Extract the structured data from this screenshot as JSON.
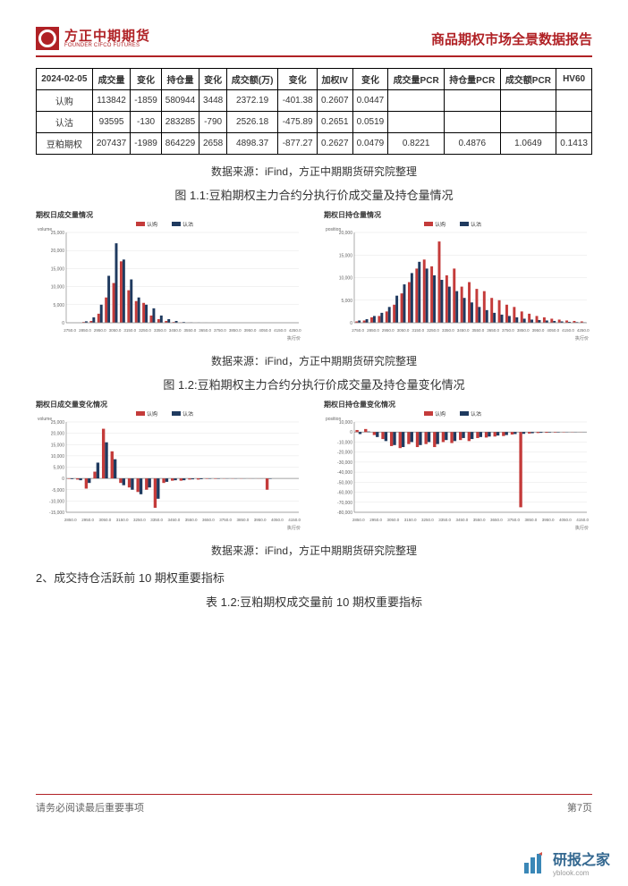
{
  "header": {
    "logo_cn": "方正中期期货",
    "logo_en": "FOUNDER CIFCO FUTURES",
    "title": "商品期权市场全景数据报告"
  },
  "table": {
    "headers": [
      "2024-02-05",
      "成交量",
      "变化",
      "持仓量",
      "变化",
      "成交额(万)",
      "变化",
      "加权IV",
      "变化",
      "成交量PCR",
      "持仓量PCR",
      "成交额PCR",
      "HV60"
    ],
    "rows": [
      [
        "认购",
        "113842",
        "-1859",
        "580944",
        "3448",
        "2372.19",
        "-401.38",
        "0.2607",
        "0.0447",
        "",
        "",
        "",
        ""
      ],
      [
        "认沽",
        "93595",
        "-130",
        "283285",
        "-790",
        "2526.18",
        "-475.89",
        "0.2651",
        "0.0519",
        "",
        "",
        "",
        ""
      ],
      [
        "豆粕期权",
        "207437",
        "-1989",
        "864229",
        "2658",
        "4898.37",
        "-877.27",
        "0.2627",
        "0.0479",
        "0.8221",
        "0.4876",
        "1.0649",
        "0.1413"
      ]
    ]
  },
  "sources": {
    "s1": "数据来源：iFind，方正中期期货研究院整理",
    "s2": "数据来源：iFind，方正中期期货研究院整理",
    "s3": "数据来源：iFind，方正中期期货研究院整理"
  },
  "figs": {
    "f11": "图 1.1:豆粕期权主力合约分执行价成交量及持仓量情况",
    "f12": "图 1.2:豆粕期权主力合约分执行价成交量及持仓量变化情况"
  },
  "chart_titles": {
    "c1": "期权日成交量情况",
    "c2": "期权日持仓量情况",
    "c3": "期权日成交量变化情况",
    "c4": "期权日持仓量变化情况"
  },
  "legend": {
    "l1": "认购",
    "l2": "认沽"
  },
  "axis_labels": {
    "y1": "volume",
    "y2": "position",
    "x": "执行价"
  },
  "colors": {
    "red": "#c43b3a",
    "navy": "#1f3a5f",
    "grid": "#e5e5e5",
    "axis": "#888888",
    "brand": "#b02125",
    "wm": "#3a87b7"
  },
  "charts": {
    "c1": {
      "type": "grouped-bar",
      "ylim": [
        0,
        25000
      ],
      "yticks": [
        0,
        5000,
        10000,
        15000,
        20000,
        25000
      ],
      "xticks": [
        "2750.0",
        "2800.0",
        "2850.0",
        "2900.0",
        "2950.0",
        "3000.0",
        "3050.0",
        "3100.0",
        "3150.0",
        "3200.0",
        "3250.0",
        "3300.0",
        "3350.0",
        "3400.0",
        "3450.0",
        "3500.0",
        "3550.0",
        "3600.0",
        "3650.0",
        "3700.0",
        "3750.0",
        "3800.0",
        "3850.0",
        "3900.0",
        "3950.0",
        "4000.0",
        "4050.0",
        "4100.0",
        "4150.0",
        "4200.0",
        "4250.0"
      ],
      "series1": [
        0,
        0,
        200,
        500,
        2500,
        7000,
        11000,
        17000,
        9000,
        6000,
        5500,
        2000,
        1000,
        500,
        200,
        100,
        50,
        20,
        10,
        0,
        0,
        0,
        0,
        0,
        0,
        0,
        0,
        0,
        0,
        0,
        0
      ],
      "series2": [
        0,
        0,
        400,
        1500,
        5000,
        13000,
        22000,
        17500,
        12000,
        7000,
        5000,
        4000,
        2000,
        1000,
        500,
        200,
        100,
        50,
        20,
        10,
        0,
        0,
        0,
        0,
        0,
        0,
        0,
        0,
        0,
        0,
        0
      ]
    },
    "c2": {
      "type": "grouped-bar",
      "ylim": [
        0,
        20000
      ],
      "yticks": [
        0,
        5000,
        10000,
        15000,
        20000
      ],
      "xticks": [
        "2750.0",
        "2800.0",
        "2850.0",
        "2900.0",
        "2950.0",
        "3000.0",
        "3050.0",
        "3100.0",
        "3150.0",
        "3200.0",
        "3250.0",
        "3300.0",
        "3350.0",
        "3400.0",
        "3450.0",
        "3500.0",
        "3550.0",
        "3600.0",
        "3650.0",
        "3700.0",
        "3750.0",
        "3800.0",
        "3850.0",
        "3900.0",
        "3950.0",
        "4000.0",
        "4050.0",
        "4100.0",
        "4150.0",
        "4200.0",
        "4250.0"
      ],
      "series1": [
        300,
        500,
        1200,
        1500,
        2500,
        4000,
        6500,
        9000,
        12000,
        14000,
        12500,
        18000,
        10500,
        12000,
        8000,
        9000,
        7500,
        7000,
        5500,
        5000,
        4000,
        3500,
        2500,
        2000,
        1500,
        1200,
        900,
        700,
        500,
        400,
        300
      ],
      "series2": [
        500,
        800,
        1500,
        2200,
        3500,
        6000,
        8500,
        11000,
        13500,
        12000,
        10500,
        9500,
        8000,
        7000,
        5500,
        4500,
        3500,
        2800,
        2200,
        1800,
        1500,
        1200,
        900,
        700,
        600,
        500,
        400,
        300,
        200,
        150,
        100
      ]
    },
    "c3": {
      "type": "grouped-bar",
      "ylim": [
        -15000,
        25000
      ],
      "yticks": [
        -15000,
        -10000,
        -5000,
        0,
        5000,
        10000,
        15000,
        20000,
        25000
      ],
      "xticks": [
        "2850.0",
        "2900.0",
        "2950.0",
        "3000.0",
        "3050.0",
        "3100.0",
        "3150.0",
        "3200.0",
        "3250.0",
        "3300.0",
        "3350.0",
        "3400.0",
        "3450.0",
        "3500.0",
        "3550.0",
        "3600.0",
        "3650.0",
        "3700.0",
        "3750.0",
        "3800.0",
        "3850.0",
        "3900.0",
        "3950.0",
        "4000.0",
        "4050.0",
        "4100.0",
        "4150.0"
      ],
      "series1": [
        -200,
        -500,
        -4500,
        3000,
        22000,
        12000,
        -2000,
        -4000,
        -6000,
        -5000,
        -13000,
        -2000,
        -1000,
        -1000,
        -500,
        -500,
        -200,
        -200,
        -100,
        -100,
        -100,
        -50,
        -50,
        -5000,
        0,
        0,
        0
      ],
      "series2": [
        -300,
        -800,
        -2000,
        7000,
        16000,
        8500,
        -3000,
        -5000,
        -7000,
        -4000,
        -9000,
        -1500,
        -800,
        -800,
        -400,
        -350,
        -180,
        -180,
        -80,
        -80,
        -50,
        -30,
        -30,
        -200,
        0,
        0,
        0
      ]
    },
    "c4": {
      "type": "grouped-bar",
      "ylim": [
        -80000,
        10000
      ],
      "yticks": [
        -80000,
        -70000,
        -60000,
        -50000,
        -40000,
        -30000,
        -20000,
        -10000,
        0,
        10000
      ],
      "xticks": [
        "2850.0",
        "2900.0",
        "2950.0",
        "3000.0",
        "3050.0",
        "3100.0",
        "3150.0",
        "3200.0",
        "3250.0",
        "3300.0",
        "3350.0",
        "3400.0",
        "3450.0",
        "3500.0",
        "3550.0",
        "3600.0",
        "3650.0",
        "3700.0",
        "3750.0",
        "3800.0",
        "3850.0",
        "3900.0",
        "3950.0",
        "4000.0",
        "4050.0",
        "4100.0",
        "4150.0"
      ],
      "series1": [
        2000,
        3000,
        -3000,
        -7000,
        -14000,
        -16000,
        -12000,
        -15000,
        -12000,
        -15000,
        -10000,
        -11000,
        -8000,
        -9000,
        -6000,
        -5500,
        -4500,
        -4000,
        -2500,
        -75000,
        -1500,
        -1000,
        -800,
        -500,
        -300,
        -200,
        -100
      ],
      "series2": [
        -2000,
        500,
        -5000,
        -9000,
        -13000,
        -15000,
        -10000,
        -13000,
        -10000,
        -12000,
        -8000,
        -9000,
        -6000,
        -7000,
        -5000,
        -4500,
        -3500,
        -3000,
        -2000,
        -1800,
        -1200,
        -800,
        -500,
        -400,
        -200,
        -150,
        -80
      ]
    }
  },
  "sec": {
    "s2": "2、成交持仓活跃前 10 期权重要指标",
    "t12": "表 1.2:豆粕期权成交量前 10 期权重要指标"
  },
  "footer": {
    "left": "请务必阅读最后重要事项",
    "right": "第7页"
  },
  "watermark": {
    "text": "研报之家",
    "sub": "yblook.com"
  }
}
